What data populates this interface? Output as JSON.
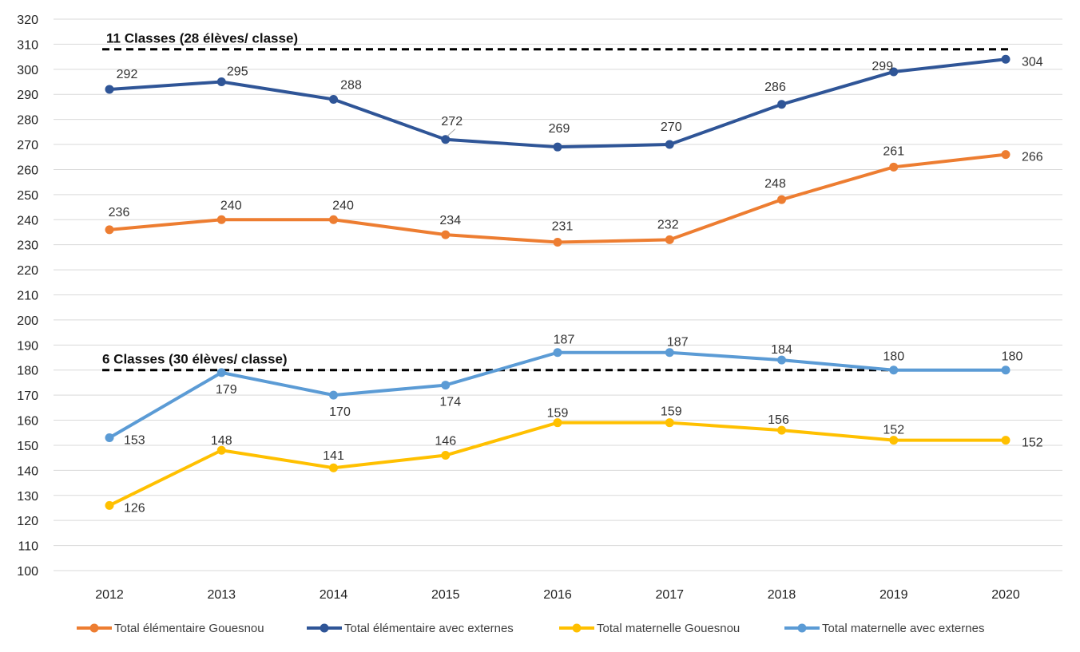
{
  "chart_data": {
    "type": "line",
    "categories": [
      "2012",
      "2013",
      "2014",
      "2015",
      "2016",
      "2017",
      "2018",
      "2019",
      "2020"
    ],
    "ylim": [
      100,
      320
    ],
    "yticks": [
      100,
      110,
      120,
      130,
      140,
      150,
      160,
      170,
      180,
      190,
      200,
      210,
      220,
      230,
      240,
      250,
      260,
      270,
      280,
      290,
      300,
      310,
      320
    ],
    "grid": true,
    "legend_position": "bottom",
    "series": [
      {
        "name": "Total élémentaire Gouesnou",
        "color": "#ED7D31",
        "values": [
          236,
          240,
          240,
          234,
          231,
          232,
          248,
          261,
          266
        ]
      },
      {
        "name": "Total élémentaire avec externes",
        "color": "#2F5597",
        "values": [
          292,
          295,
          288,
          272,
          269,
          270,
          286,
          299,
          304
        ]
      },
      {
        "name": "Total maternelle Gouesnou",
        "color": "#FFC000",
        "values": [
          126,
          148,
          141,
          146,
          159,
          159,
          156,
          152,
          152
        ]
      },
      {
        "name": "Total maternelle avec externes",
        "color": "#5B9BD5",
        "values": [
          153,
          179,
          170,
          174,
          187,
          187,
          184,
          180,
          180
        ]
      }
    ],
    "reference_lines": [
      {
        "label": "11 Classes (28 élèves/ classe)",
        "value": 308
      },
      {
        "label": "6 Classes (30 élèves/ classe)",
        "value": 180
      }
    ]
  }
}
